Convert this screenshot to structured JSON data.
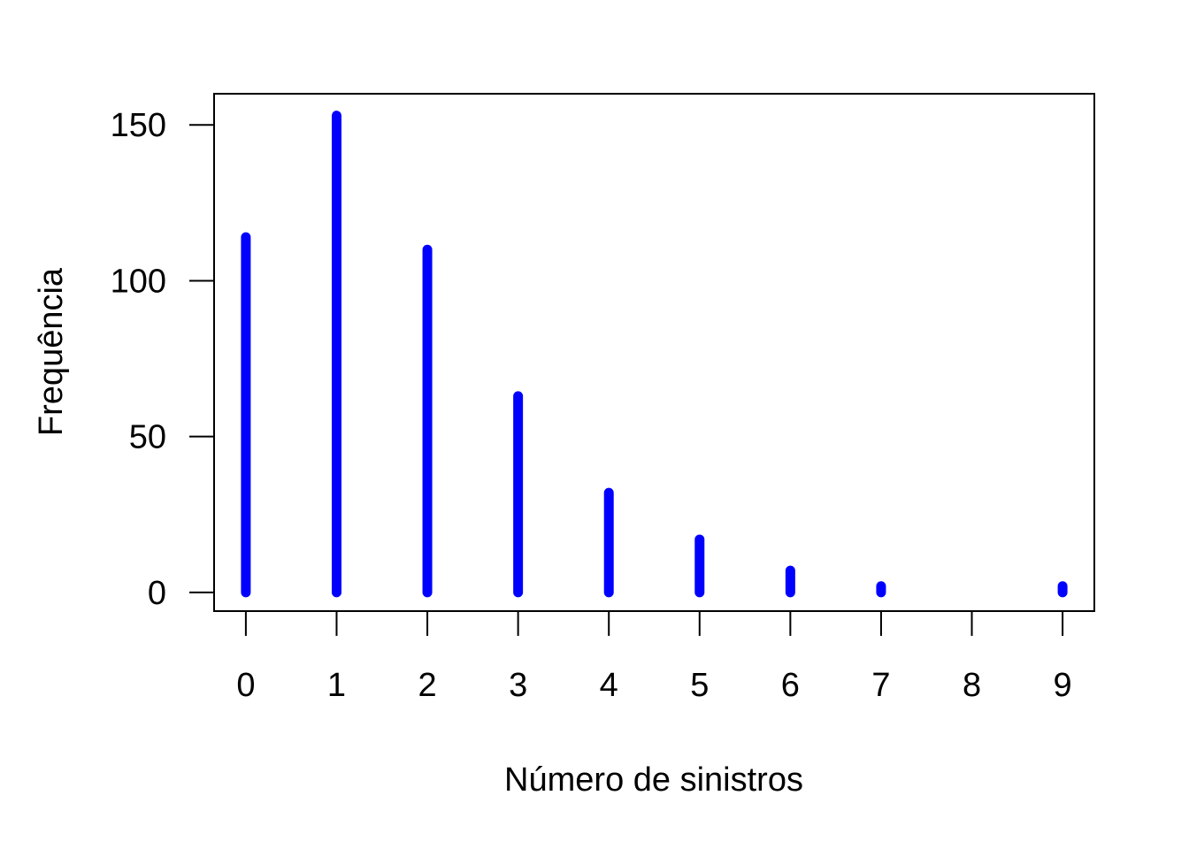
{
  "chart_data": {
    "type": "bar",
    "style": "vertical-lines",
    "xlabel": "Número de sinistros",
    "ylabel": "Frequência",
    "x": [
      0,
      1,
      2,
      3,
      4,
      5,
      6,
      7,
      9
    ],
    "values": [
      114,
      153,
      110,
      63,
      32,
      17,
      7,
      2,
      2
    ],
    "x_ticks": [
      "0",
      "1",
      "2",
      "3",
      "4",
      "5",
      "6",
      "7",
      "8",
      "9"
    ],
    "y_ticks": [
      "0",
      "50",
      "100",
      "150"
    ],
    "xlim": [
      -0.35,
      9.35
    ],
    "ylim": [
      -6,
      160
    ],
    "grid": false,
    "legend": "none",
    "bar_color": "#0000ff",
    "axis_color": "#000000"
  }
}
